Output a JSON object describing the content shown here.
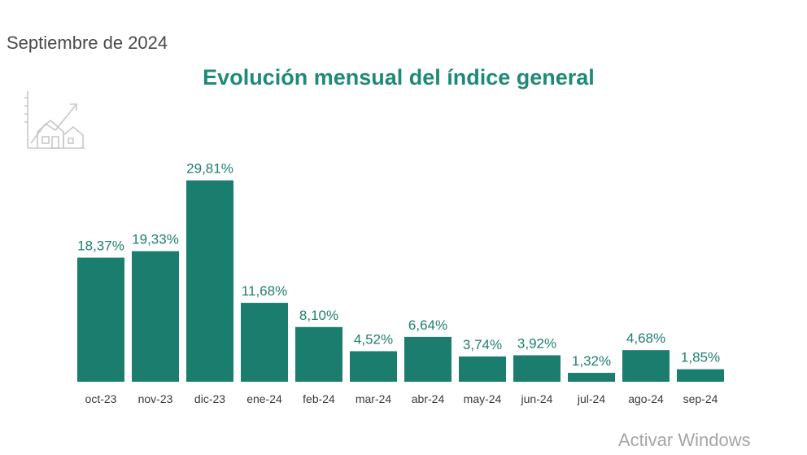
{
  "header": {
    "date_label": "Septiembre de 2024"
  },
  "footer": {
    "watermark": "Activar Windows"
  },
  "logo_icon": "house-growth-icon",
  "colors": {
    "bar": "#1b7d6e",
    "title": "#1f8a78",
    "value_label": "#1f7f70"
  },
  "chart_data": {
    "type": "bar",
    "title": "Evolución mensual del índice general",
    "xlabel": "",
    "ylabel": "",
    "categories": [
      "oct-23",
      "nov-23",
      "dic-23",
      "ene-24",
      "feb-24",
      "mar-24",
      "abr-24",
      "may-24",
      "jun-24",
      "jul-24",
      "ago-24",
      "sep-24"
    ],
    "values": [
      18.37,
      19.33,
      29.81,
      11.68,
      8.1,
      4.52,
      6.64,
      3.74,
      3.92,
      1.32,
      4.68,
      1.85
    ],
    "value_labels": [
      "18,37%",
      "19,33%",
      "29,81%",
      "11,68%",
      "8,10%",
      "4,52%",
      "6,64%",
      "3,74%",
      "3,92%",
      "1,32%",
      "4,68%",
      "1,85%"
    ],
    "ylim": [
      0,
      30
    ],
    "grid": false,
    "legend": "none"
  }
}
